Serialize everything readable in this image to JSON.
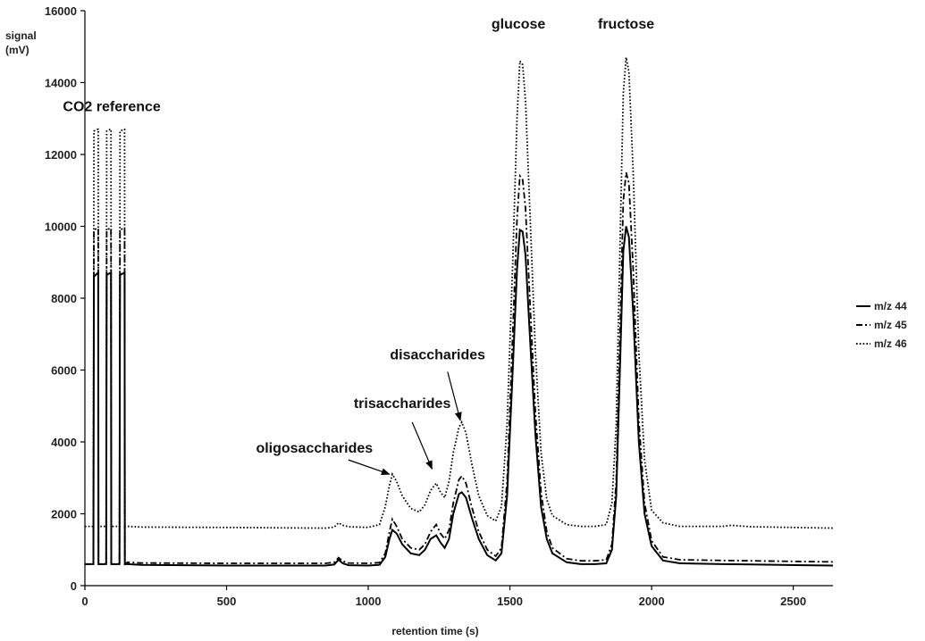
{
  "chart_data": {
    "type": "line",
    "xlabel": "retention time (s)",
    "ylabel_line1": "signal",
    "ylabel_line2": "(mV)",
    "xlim": [
      0,
      2640
    ],
    "ylim": [
      0,
      16000
    ],
    "xticks": [
      0,
      500,
      1000,
      1500,
      2000,
      2500
    ],
    "yticks": [
      0,
      2000,
      4000,
      6000,
      8000,
      10000,
      12000,
      14000,
      16000
    ],
    "grid": false,
    "legend_position": "right",
    "series": [
      {
        "name": "m/z 44",
        "style": "solid",
        "color": "#000000",
        "points": [
          [
            0,
            600
          ],
          [
            30,
            600
          ],
          [
            32,
            8600
          ],
          [
            45,
            8700
          ],
          [
            47,
            8700
          ],
          [
            48,
            600
          ],
          [
            75,
            600
          ],
          [
            77,
            8650
          ],
          [
            90,
            8700
          ],
          [
            92,
            8700
          ],
          [
            93,
            600
          ],
          [
            122,
            600
          ],
          [
            124,
            8650
          ],
          [
            138,
            8700
          ],
          [
            140,
            8700
          ],
          [
            141,
            600
          ],
          [
            150,
            600
          ],
          [
            200,
            580
          ],
          [
            500,
            560
          ],
          [
            850,
            560
          ],
          [
            880,
            590
          ],
          [
            895,
            720
          ],
          [
            910,
            620
          ],
          [
            930,
            570
          ],
          [
            1000,
            560
          ],
          [
            1040,
            580
          ],
          [
            1060,
            800
          ],
          [
            1075,
            1300
          ],
          [
            1085,
            1550
          ],
          [
            1100,
            1450
          ],
          [
            1120,
            1150
          ],
          [
            1150,
            900
          ],
          [
            1180,
            850
          ],
          [
            1200,
            1000
          ],
          [
            1220,
            1300
          ],
          [
            1240,
            1400
          ],
          [
            1255,
            1200
          ],
          [
            1270,
            1050
          ],
          [
            1285,
            1300
          ],
          [
            1300,
            2000
          ],
          [
            1320,
            2550
          ],
          [
            1330,
            2600
          ],
          [
            1345,
            2450
          ],
          [
            1365,
            1900
          ],
          [
            1390,
            1300
          ],
          [
            1420,
            850
          ],
          [
            1450,
            700
          ],
          [
            1470,
            900
          ],
          [
            1490,
            2500
          ],
          [
            1510,
            6000
          ],
          [
            1525,
            8800
          ],
          [
            1535,
            9900
          ],
          [
            1545,
            9850
          ],
          [
            1555,
            9200
          ],
          [
            1570,
            7000
          ],
          [
            1590,
            4200
          ],
          [
            1610,
            2200
          ],
          [
            1630,
            1300
          ],
          [
            1650,
            900
          ],
          [
            1700,
            650
          ],
          [
            1750,
            600
          ],
          [
            1800,
            600
          ],
          [
            1840,
            620
          ],
          [
            1860,
            1000
          ],
          [
            1875,
            2500
          ],
          [
            1890,
            6500
          ],
          [
            1900,
            9300
          ],
          [
            1910,
            10000
          ],
          [
            1920,
            9700
          ],
          [
            1935,
            7600
          ],
          [
            1955,
            4000
          ],
          [
            1975,
            2000
          ],
          [
            2000,
            1100
          ],
          [
            2040,
            700
          ],
          [
            2100,
            620
          ],
          [
            2250,
            600
          ],
          [
            2350,
            590
          ],
          [
            2640,
            560
          ]
        ]
      },
      {
        "name": "m/z 45",
        "style": "dash-dot",
        "color": "#000000",
        "points": [
          [
            0,
            600
          ],
          [
            30,
            600
          ],
          [
            32,
            9900
          ],
          [
            45,
            9950
          ],
          [
            47,
            9950
          ],
          [
            48,
            600
          ],
          [
            75,
            600
          ],
          [
            77,
            9900
          ],
          [
            90,
            9950
          ],
          [
            92,
            9950
          ],
          [
            93,
            600
          ],
          [
            122,
            600
          ],
          [
            124,
            9900
          ],
          [
            138,
            9950
          ],
          [
            140,
            9950
          ],
          [
            141,
            600
          ],
          [
            150,
            650
          ],
          [
            200,
            630
          ],
          [
            500,
            620
          ],
          [
            850,
            620
          ],
          [
            880,
            650
          ],
          [
            895,
            780
          ],
          [
            910,
            680
          ],
          [
            930,
            630
          ],
          [
            1000,
            620
          ],
          [
            1040,
            640
          ],
          [
            1060,
            900
          ],
          [
            1075,
            1500
          ],
          [
            1085,
            1850
          ],
          [
            1100,
            1650
          ],
          [
            1120,
            1300
          ],
          [
            1150,
            1050
          ],
          [
            1180,
            1000
          ],
          [
            1200,
            1150
          ],
          [
            1220,
            1500
          ],
          [
            1240,
            1700
          ],
          [
            1255,
            1450
          ],
          [
            1270,
            1300
          ],
          [
            1285,
            1550
          ],
          [
            1300,
            2300
          ],
          [
            1320,
            2950
          ],
          [
            1330,
            3050
          ],
          [
            1345,
            2850
          ],
          [
            1365,
            2200
          ],
          [
            1390,
            1500
          ],
          [
            1420,
            1000
          ],
          [
            1450,
            820
          ],
          [
            1470,
            1050
          ],
          [
            1490,
            2900
          ],
          [
            1510,
            7000
          ],
          [
            1525,
            10200
          ],
          [
            1535,
            11400
          ],
          [
            1545,
            11300
          ],
          [
            1555,
            10500
          ],
          [
            1570,
            8000
          ],
          [
            1590,
            4800
          ],
          [
            1610,
            2600
          ],
          [
            1630,
            1500
          ],
          [
            1650,
            1050
          ],
          [
            1700,
            750
          ],
          [
            1750,
            690
          ],
          [
            1800,
            690
          ],
          [
            1840,
            720
          ],
          [
            1860,
            1150
          ],
          [
            1875,
            2900
          ],
          [
            1890,
            7500
          ],
          [
            1900,
            10700
          ],
          [
            1910,
            11500
          ],
          [
            1920,
            11200
          ],
          [
            1935,
            8800
          ],
          [
            1955,
            4600
          ],
          [
            1975,
            2300
          ],
          [
            2000,
            1250
          ],
          [
            2040,
            800
          ],
          [
            2100,
            720
          ],
          [
            2250,
            700
          ],
          [
            2350,
            690
          ],
          [
            2640,
            660
          ]
        ]
      },
      {
        "name": "m/z 46",
        "style": "dotted",
        "color": "#000000",
        "points": [
          [
            0,
            1650
          ],
          [
            30,
            1650
          ],
          [
            32,
            12650
          ],
          [
            45,
            12700
          ],
          [
            47,
            12700
          ],
          [
            48,
            1650
          ],
          [
            75,
            1650
          ],
          [
            77,
            12650
          ],
          [
            90,
            12700
          ],
          [
            92,
            12700
          ],
          [
            93,
            1650
          ],
          [
            122,
            1650
          ],
          [
            124,
            12650
          ],
          [
            138,
            12700
          ],
          [
            140,
            12700
          ],
          [
            141,
            1650
          ],
          [
            150,
            1650
          ],
          [
            200,
            1630
          ],
          [
            500,
            1620
          ],
          [
            850,
            1600
          ],
          [
            880,
            1630
          ],
          [
            895,
            1750
          ],
          [
            910,
            1680
          ],
          [
            930,
            1640
          ],
          [
            1000,
            1620
          ],
          [
            1040,
            1700
          ],
          [
            1060,
            2200
          ],
          [
            1075,
            2800
          ],
          [
            1085,
            3100
          ],
          [
            1100,
            2900
          ],
          [
            1120,
            2500
          ],
          [
            1150,
            2150
          ],
          [
            1180,
            2050
          ],
          [
            1200,
            2250
          ],
          [
            1220,
            2650
          ],
          [
            1240,
            2850
          ],
          [
            1255,
            2600
          ],
          [
            1270,
            2450
          ],
          [
            1285,
            2900
          ],
          [
            1300,
            3700
          ],
          [
            1320,
            4400
          ],
          [
            1330,
            4550
          ],
          [
            1345,
            4250
          ],
          [
            1365,
            3400
          ],
          [
            1390,
            2500
          ],
          [
            1420,
            1950
          ],
          [
            1450,
            1800
          ],
          [
            1470,
            2200
          ],
          [
            1490,
            4500
          ],
          [
            1510,
            9000
          ],
          [
            1525,
            13000
          ],
          [
            1535,
            14600
          ],
          [
            1545,
            14500
          ],
          [
            1555,
            13500
          ],
          [
            1570,
            10500
          ],
          [
            1590,
            6500
          ],
          [
            1610,
            3700
          ],
          [
            1630,
            2400
          ],
          [
            1650,
            1950
          ],
          [
            1700,
            1700
          ],
          [
            1750,
            1650
          ],
          [
            1800,
            1650
          ],
          [
            1840,
            1700
          ],
          [
            1860,
            2300
          ],
          [
            1875,
            4500
          ],
          [
            1890,
            10000
          ],
          [
            1900,
            13700
          ],
          [
            1910,
            14700
          ],
          [
            1920,
            14300
          ],
          [
            1935,
            11500
          ],
          [
            1955,
            6500
          ],
          [
            1975,
            3500
          ],
          [
            2000,
            2100
          ],
          [
            2040,
            1750
          ],
          [
            2100,
            1650
          ],
          [
            2250,
            1650
          ],
          [
            2280,
            1680
          ],
          [
            2350,
            1640
          ],
          [
            2640,
            1600
          ]
        ]
      }
    ],
    "annotations": [
      {
        "text": "CO2 reference",
        "x": 95,
        "y": 13200,
        "anchor": "middle"
      },
      {
        "text": "glucose",
        "x": 1530,
        "y": 15500,
        "anchor": "middle"
      },
      {
        "text": "fructose",
        "x": 1910,
        "y": 15500,
        "anchor": "middle"
      },
      {
        "text": "disaccharides",
        "x": 1245,
        "y": 6300,
        "anchor": "middle",
        "arrow_to": [
          1325,
          4600
        ],
        "arrow_from": [
          1280,
          5950
        ]
      },
      {
        "text": "trisaccharides",
        "x": 1120,
        "y": 4950,
        "anchor": "middle",
        "arrow_to": [
          1225,
          3250
        ],
        "arrow_from": [
          1155,
          4550
        ]
      },
      {
        "text": "oligosaccharides",
        "x": 810,
        "y": 3700,
        "anchor": "middle",
        "arrow_to": [
          1075,
          3100
        ],
        "arrow_from": [
          930,
          3500
        ]
      }
    ]
  }
}
